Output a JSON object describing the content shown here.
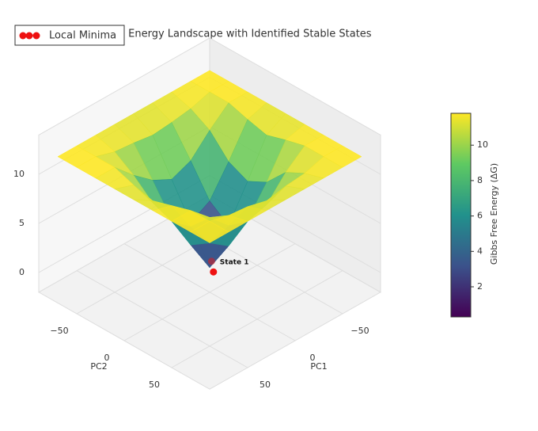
{
  "chart_data": {
    "type": "surface",
    "title": "Free Energy Landscape with Identified Stable States",
    "xlabel": "PC1",
    "ylabel": "PC2",
    "x": [
      -80,
      -60,
      -40,
      -20,
      0,
      20,
      40,
      60,
      80
    ],
    "y": [
      -80,
      -60,
      -40,
      -20,
      0,
      20,
      40,
      60,
      80
    ],
    "z": [
      [
        11.8,
        11.8,
        11.8,
        11.8,
        11.8,
        11.8,
        11.8,
        11.8,
        11.8
      ],
      [
        11.8,
        11.8,
        11.2,
        10.9,
        10.7,
        11.0,
        11.2,
        11.8,
        11.8
      ],
      [
        11.8,
        11.8,
        10.1,
        8.1,
        7.3,
        8.3,
        9.9,
        11.8,
        11.8
      ],
      [
        11.8,
        11.2,
        8.0,
        5.1,
        4.0,
        5.4,
        8.2,
        11.1,
        11.8
      ],
      [
        11.8,
        10.7,
        7.1,
        3.7,
        0.5,
        3.9,
        7.4,
        10.6,
        11.8
      ],
      [
        11.8,
        11.3,
        8.1,
        5.4,
        3.8,
        5.2,
        8.0,
        11.2,
        11.8
      ],
      [
        11.8,
        11.8,
        10.2,
        8.0,
        7.4,
        8.1,
        10.0,
        11.8,
        11.8
      ],
      [
        11.8,
        11.8,
        11.2,
        11.0,
        10.6,
        11.1,
        11.3,
        11.8,
        11.8
      ],
      [
        11.8,
        11.8,
        11.8,
        11.8,
        11.8,
        11.8,
        11.8,
        11.8,
        11.8
      ]
    ],
    "xlim": [
      -90,
      90
    ],
    "ylim": [
      -90,
      90
    ],
    "zlim": [
      -2,
      14
    ],
    "xticks": [
      {
        "value": -50,
        "label": "−50"
      },
      0,
      50
    ],
    "yticks": [
      {
        "value": -50,
        "label": "−50"
      },
      0,
      50
    ],
    "zticks": [
      0,
      5,
      10
    ],
    "colorbar": {
      "label": "Gibbs Free Energy (ΔG)",
      "lim": [
        0.3,
        11.8
      ],
      "ticks": [
        2,
        4,
        6,
        8,
        10
      ]
    },
    "minima": {
      "name": "Local Minima",
      "color": "#ee1111",
      "x": [
        2,
        -6
      ],
      "y": [
        6,
        -4
      ],
      "z": [
        0.5,
        0.6
      ]
    },
    "annotation": "State 1"
  }
}
